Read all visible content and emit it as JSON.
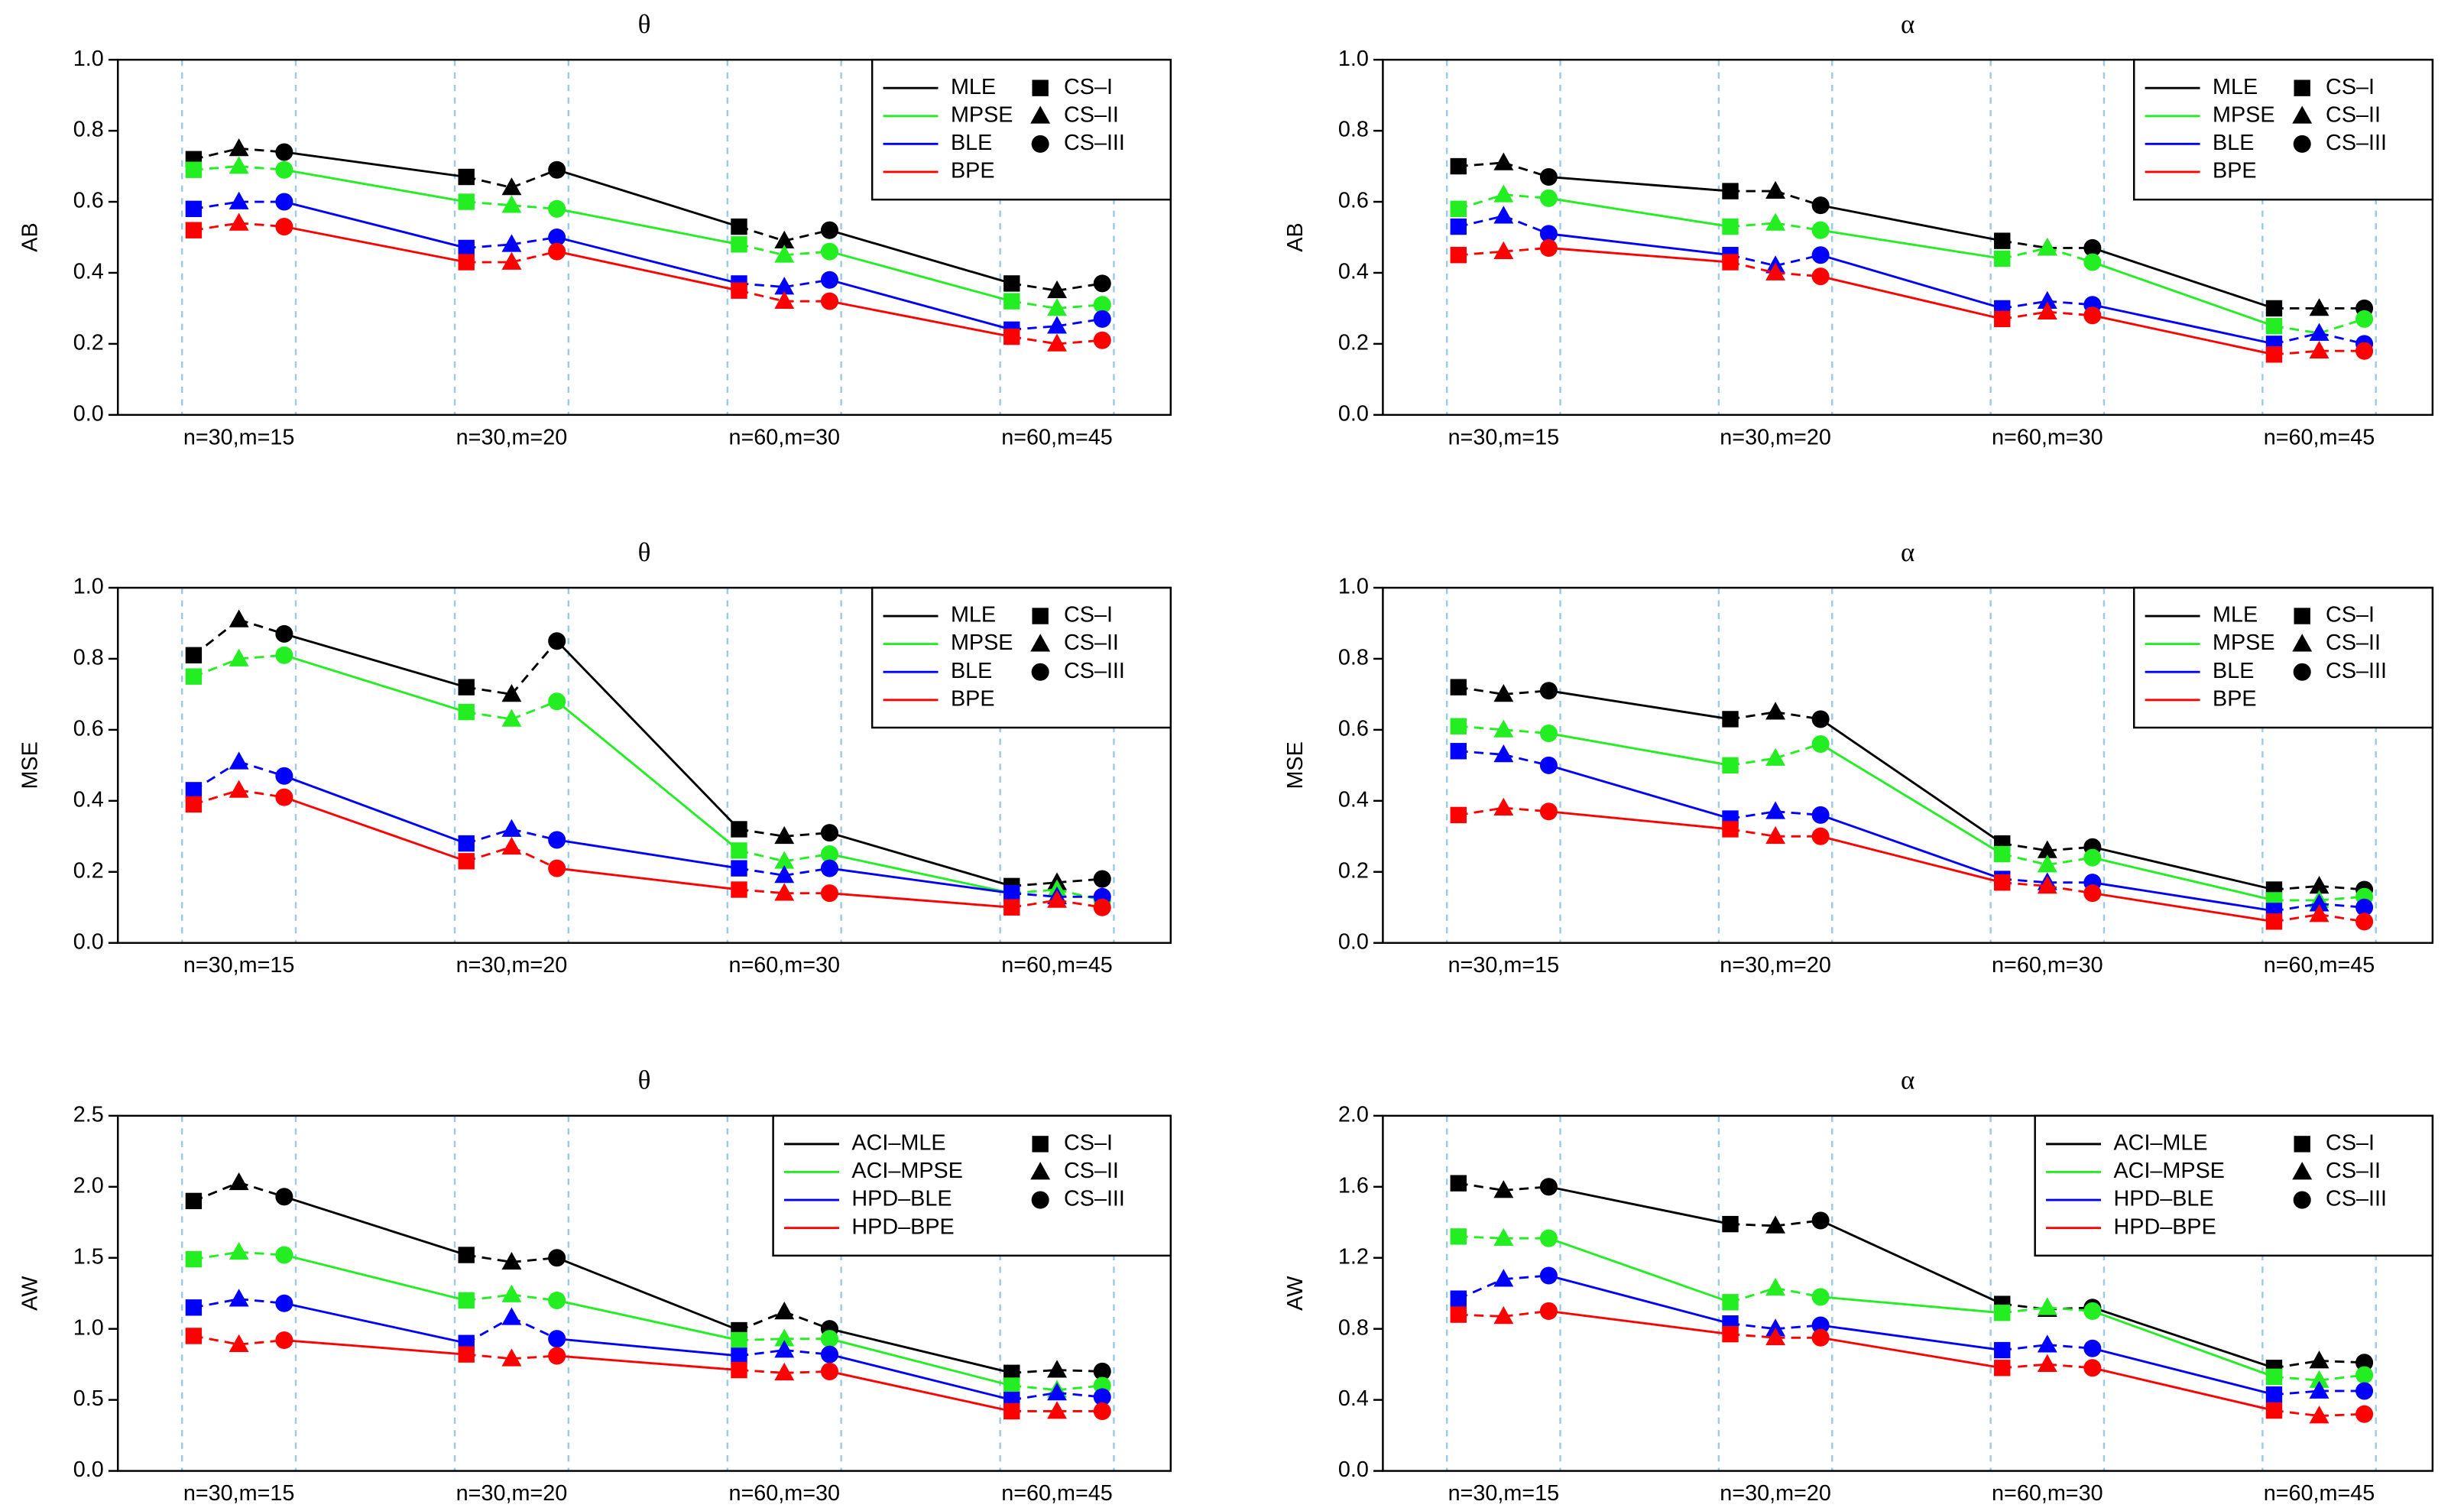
{
  "chart_data": [
    {
      "type": "line",
      "title": "θ",
      "y_label": "AB",
      "categories": [
        null,
        "n=30,m=15",
        null,
        null,
        "n=30,m=20",
        null,
        null,
        "n=60,m=30",
        null,
        null,
        "n=60,m=45",
        null
      ],
      "schemes": [
        "CS–I",
        "CS–II",
        "CS–III"
      ],
      "series": [
        {
          "name": "MLE",
          "color": "#000000",
          "values": [
            0.72,
            0.75,
            0.74,
            0.67,
            0.64,
            0.69,
            0.53,
            0.49,
            0.52,
            0.37,
            0.35,
            0.37
          ]
        },
        {
          "name": "MPSE",
          "color": "#22ee22",
          "values": [
            0.69,
            0.7,
            0.69,
            0.6,
            0.59,
            0.58,
            0.48,
            0.45,
            0.46,
            0.32,
            0.3,
            0.31
          ]
        },
        {
          "name": "BLE",
          "color": "#0000ff",
          "values": [
            0.58,
            0.6,
            0.6,
            0.47,
            0.48,
            0.5,
            0.37,
            0.36,
            0.38,
            0.24,
            0.25,
            0.27
          ]
        },
        {
          "name": "BPE",
          "color": "#ff0000",
          "values": [
            0.52,
            0.54,
            0.53,
            0.43,
            0.43,
            0.46,
            0.35,
            0.32,
            0.32,
            0.22,
            0.2,
            0.21
          ]
        }
      ],
      "ylim": [
        0,
        1
      ],
      "yticks": [
        {
          "value": 0,
          "label": "0.0"
        },
        {
          "value": 0.2,
          "label": "0.2"
        },
        {
          "value": 0.4,
          "label": "0.4"
        },
        {
          "value": 0.6,
          "label": "0.6"
        },
        {
          "value": 0.8,
          "label": "0.8"
        },
        {
          "value": 1,
          "label": "1.0"
        }
      ],
      "legend": "top-right"
    },
    {
      "type": "line",
      "title": "α",
      "y_label": "AB",
      "categories": [
        null,
        "n=30,m=15",
        null,
        null,
        "n=30,m=20",
        null,
        null,
        "n=60,m=30",
        null,
        null,
        "n=60,m=45",
        null
      ],
      "schemes": [
        "CS–I",
        "CS–II",
        "CS–III"
      ],
      "series": [
        {
          "name": "MLE",
          "color": "#000000",
          "values": [
            0.7,
            0.71,
            0.67,
            0.63,
            0.63,
            0.59,
            0.49,
            0.47,
            0.47,
            0.3,
            0.3,
            0.3
          ]
        },
        {
          "name": "MPSE",
          "color": "#22ee22",
          "values": [
            0.58,
            0.62,
            0.61,
            0.53,
            0.54,
            0.52,
            0.44,
            0.47,
            0.43,
            0.25,
            0.23,
            0.27
          ]
        },
        {
          "name": "BLE",
          "color": "#0000ff",
          "values": [
            0.53,
            0.56,
            0.51,
            0.45,
            0.42,
            0.45,
            0.3,
            0.32,
            0.31,
            0.2,
            0.23,
            0.2
          ]
        },
        {
          "name": "BPE",
          "color": "#ff0000",
          "values": [
            0.45,
            0.46,
            0.47,
            0.43,
            0.4,
            0.39,
            0.27,
            0.29,
            0.28,
            0.17,
            0.18,
            0.18
          ]
        }
      ],
      "ylim": [
        0,
        1
      ],
      "yticks": [
        {
          "value": 0,
          "label": "0.0"
        },
        {
          "value": 0.2,
          "label": "0.2"
        },
        {
          "value": 0.4,
          "label": "0.4"
        },
        {
          "value": 0.6,
          "label": "0.6"
        },
        {
          "value": 0.8,
          "label": "0.8"
        },
        {
          "value": 1,
          "label": "1.0"
        }
      ],
      "legend": "top-right"
    },
    {
      "type": "line",
      "title": "θ",
      "y_label": "MSE",
      "categories": [
        null,
        "n=30,m=15",
        null,
        null,
        "n=30,m=20",
        null,
        null,
        "n=60,m=30",
        null,
        null,
        "n=60,m=45",
        null
      ],
      "schemes": [
        "CS–I",
        "CS–II",
        "CS–III"
      ],
      "series": [
        {
          "name": "MLE",
          "color": "#000000",
          "values": [
            0.81,
            0.91,
            0.87,
            0.72,
            0.7,
            0.85,
            0.32,
            0.3,
            0.31,
            0.16,
            0.17,
            0.18
          ]
        },
        {
          "name": "MPSE",
          "color": "#22ee22",
          "values": [
            0.75,
            0.8,
            0.81,
            0.65,
            0.63,
            0.68,
            0.26,
            0.23,
            0.25,
            0.14,
            0.15,
            0.12
          ]
        },
        {
          "name": "BLE",
          "color": "#0000ff",
          "values": [
            0.43,
            0.51,
            0.47,
            0.28,
            0.32,
            0.29,
            0.21,
            0.19,
            0.21,
            0.14,
            0.13,
            0.13
          ]
        },
        {
          "name": "BPE",
          "color": "#ff0000",
          "values": [
            0.39,
            0.43,
            0.41,
            0.23,
            0.27,
            0.21,
            0.15,
            0.14,
            0.14,
            0.1,
            0.12,
            0.1
          ]
        }
      ],
      "ylim": [
        0,
        1
      ],
      "yticks": [
        {
          "value": 0,
          "label": "0.0"
        },
        {
          "value": 0.2,
          "label": "0.2"
        },
        {
          "value": 0.4,
          "label": "0.4"
        },
        {
          "value": 0.6,
          "label": "0.6"
        },
        {
          "value": 0.8,
          "label": "0.8"
        },
        {
          "value": 1,
          "label": "1.0"
        }
      ],
      "legend": "top-right"
    },
    {
      "type": "line",
      "title": "α",
      "y_label": "MSE",
      "categories": [
        null,
        "n=30,m=15",
        null,
        null,
        "n=30,m=20",
        null,
        null,
        "n=60,m=30",
        null,
        null,
        "n=60,m=45",
        null
      ],
      "schemes": [
        "CS–I",
        "CS–II",
        "CS–III"
      ],
      "series": [
        {
          "name": "MLE",
          "color": "#000000",
          "values": [
            0.72,
            0.7,
            0.71,
            0.63,
            0.65,
            0.63,
            0.28,
            0.26,
            0.27,
            0.15,
            0.16,
            0.15
          ]
        },
        {
          "name": "MPSE",
          "color": "#22ee22",
          "values": [
            0.61,
            0.6,
            0.59,
            0.5,
            0.52,
            0.56,
            0.25,
            0.22,
            0.24,
            0.12,
            0.12,
            0.13
          ]
        },
        {
          "name": "BLE",
          "color": "#0000ff",
          "values": [
            0.54,
            0.53,
            0.5,
            0.35,
            0.37,
            0.36,
            0.18,
            0.17,
            0.17,
            0.09,
            0.11,
            0.1
          ]
        },
        {
          "name": "BPE",
          "color": "#ff0000",
          "values": [
            0.36,
            0.38,
            0.37,
            0.32,
            0.3,
            0.3,
            0.17,
            0.16,
            0.14,
            0.06,
            0.08,
            0.06
          ]
        }
      ],
      "ylim": [
        0,
        1
      ],
      "yticks": [
        {
          "value": 0,
          "label": "0.0"
        },
        {
          "value": 0.2,
          "label": "0.2"
        },
        {
          "value": 0.4,
          "label": "0.4"
        },
        {
          "value": 0.6,
          "label": "0.6"
        },
        {
          "value": 0.8,
          "label": "0.8"
        },
        {
          "value": 1,
          "label": "1.0"
        }
      ],
      "legend": "top-right"
    },
    {
      "type": "line",
      "title": "θ",
      "y_label": "AW",
      "categories": [
        null,
        "n=30,m=15",
        null,
        null,
        "n=30,m=20",
        null,
        null,
        "n=60,m=30",
        null,
        null,
        "n=60,m=45",
        null
      ],
      "schemes": [
        "CS–I",
        "CS–II",
        "CS–III"
      ],
      "series": [
        {
          "name": "ACI–MLE",
          "color": "#000000",
          "values": [
            1.9,
            2.03,
            1.93,
            1.52,
            1.47,
            1.5,
            0.99,
            1.12,
            1.0,
            0.69,
            0.71,
            0.7
          ]
        },
        {
          "name": "ACI–MPSE",
          "color": "#22ee22",
          "values": [
            1.49,
            1.54,
            1.52,
            1.2,
            1.24,
            1.2,
            0.92,
            0.93,
            0.93,
            0.6,
            0.57,
            0.6
          ]
        },
        {
          "name": "HPD–BLE",
          "color": "#0000ff",
          "values": [
            1.15,
            1.21,
            1.18,
            0.9,
            1.08,
            0.93,
            0.81,
            0.85,
            0.82,
            0.5,
            0.55,
            0.52
          ]
        },
        {
          "name": "HPD–BPE",
          "color": "#ff0000",
          "values": [
            0.95,
            0.89,
            0.92,
            0.82,
            0.79,
            0.81,
            0.71,
            0.69,
            0.7,
            0.42,
            0.42,
            0.42
          ]
        }
      ],
      "ylim": [
        0,
        2.5
      ],
      "yticks": [
        {
          "value": 0,
          "label": "0.0"
        },
        {
          "value": 0.5,
          "label": "0.5"
        },
        {
          "value": 1,
          "label": "1.0"
        },
        {
          "value": 1.5,
          "label": "1.5"
        },
        {
          "value": 2,
          "label": "2.0"
        },
        {
          "value": 2.5,
          "label": "2.5"
        }
      ],
      "legend": "top-right"
    },
    {
      "type": "line",
      "title": "α",
      "y_label": "AW",
      "categories": [
        null,
        "n=30,m=15",
        null,
        null,
        "n=30,m=20",
        null,
        null,
        "n=60,m=30",
        null,
        null,
        "n=60,m=45",
        null
      ],
      "schemes": [
        "CS–I",
        "CS–II",
        "CS–III"
      ],
      "series": [
        {
          "name": "ACI–MLE",
          "color": "#000000",
          "values": [
            1.62,
            1.58,
            1.6,
            1.39,
            1.38,
            1.41,
            0.94,
            0.91,
            0.92,
            0.58,
            0.62,
            0.61
          ]
        },
        {
          "name": "ACI–MPSE",
          "color": "#22ee22",
          "values": [
            1.32,
            1.31,
            1.31,
            0.95,
            1.03,
            0.98,
            0.89,
            0.92,
            0.9,
            0.53,
            0.51,
            0.54
          ]
        },
        {
          "name": "HPD–BLE",
          "color": "#0000ff",
          "values": [
            0.97,
            1.08,
            1.1,
            0.83,
            0.8,
            0.82,
            0.68,
            0.71,
            0.69,
            0.43,
            0.45,
            0.45
          ]
        },
        {
          "name": "HPD–BPE",
          "color": "#ff0000",
          "values": [
            0.88,
            0.87,
            0.9,
            0.77,
            0.75,
            0.75,
            0.58,
            0.6,
            0.58,
            0.34,
            0.31,
            0.32
          ]
        }
      ],
      "ylim": [
        0,
        2
      ],
      "yticks": [
        {
          "value": 0,
          "label": "0.0"
        },
        {
          "value": 0.4,
          "label": "0.4"
        },
        {
          "value": 0.8,
          "label": "0.8"
        },
        {
          "value": 1.2,
          "label": "1.2"
        },
        {
          "value": 1.6,
          "label": "1.6"
        },
        {
          "value": 2,
          "label": "2.0"
        }
      ],
      "legend": "top-right"
    }
  ]
}
